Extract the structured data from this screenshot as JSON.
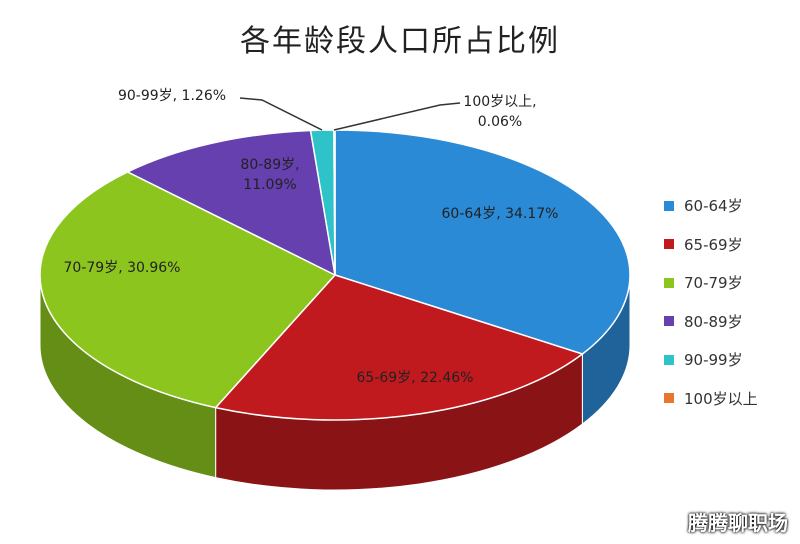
{
  "chart_data": {
    "type": "pie3d",
    "title": "各年龄段人口所占比例",
    "categories": [
      "60-64岁",
      "65-69岁",
      "70-79岁",
      "80-89岁",
      "90-99岁",
      "100岁以上"
    ],
    "values": [
      34.17,
      22.46,
      30.96,
      11.09,
      1.26,
      0.06
    ],
    "value_labels": [
      "60-64岁, 34.17%",
      "65-69岁, 22.46%",
      "70-79岁, 30.96%",
      "80-89岁, 11.09%",
      "90-99岁, 1.26%",
      "100岁以上, 0.06%"
    ],
    "colors": [
      "#2b8ad6",
      "#c01a1f",
      "#8cc51e",
      "#6540ae",
      "#2dc3c8",
      "#e8772e"
    ],
    "legend": "right"
  },
  "watermark": "腾腾聊职场"
}
